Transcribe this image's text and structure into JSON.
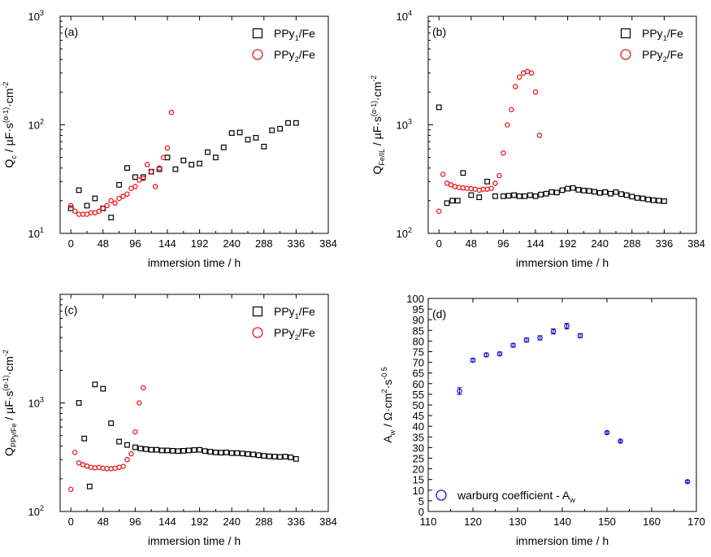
{
  "chart_data": [
    {
      "panel": "(a)",
      "type": "scatter",
      "yscale": "log",
      "xlim": [
        -16,
        384
      ],
      "ylim": [
        10,
        1000
      ],
      "xticks": [
        0,
        48,
        96,
        144,
        192,
        240,
        288,
        336,
        384
      ],
      "yticks": [
        {
          "v": 10,
          "label": "10",
          "sup": "1"
        },
        {
          "v": 100,
          "label": "10",
          "sup": "2"
        },
        {
          "v": 1000,
          "label": "10",
          "sup": "3"
        }
      ],
      "xlabel": "immersion time / h",
      "ylabel": {
        "main": "Q",
        "sub": "c",
        "rest": " / µF·s",
        "sup": "(α-1)",
        "tail": "·cm",
        "sup2": "-2"
      },
      "legend_placement": "top-right",
      "series": [
        {
          "name": {
            "base": "PPy",
            "sub": "1",
            "rest": "/Fe"
          },
          "marker": "square",
          "color": "#000000",
          "x": [
            0,
            12,
            24,
            36,
            48,
            60,
            72,
            84,
            96,
            108,
            120,
            132,
            144,
            156,
            168,
            180,
            192,
            204,
            216,
            228,
            240,
            252,
            264,
            276,
            288,
            300,
            312,
            324,
            336
          ],
          "y": [
            17,
            25,
            18,
            21,
            17,
            14,
            28,
            40,
            33,
            33,
            37,
            39,
            50,
            39,
            47,
            43,
            44,
            56,
            50,
            62,
            84,
            85,
            73,
            76,
            63,
            89,
            92,
            104,
            104
          ]
        },
        {
          "name": {
            "base": "PPy",
            "sub": "2",
            "rest": "/Fe"
          },
          "marker": "circle",
          "color": "#e8191f",
          "x": [
            0,
            6,
            12,
            18,
            24,
            30,
            36,
            42,
            48,
            54,
            60,
            66,
            72,
            78,
            84,
            90,
            96,
            102,
            108,
            114,
            120,
            126,
            132,
            138,
            144,
            150
          ],
          "y": [
            18,
            16,
            15,
            15,
            15,
            15.5,
            15.5,
            16,
            17,
            18,
            20,
            19,
            21,
            22,
            23,
            26,
            27,
            31,
            32,
            43,
            37,
            27,
            40,
            50,
            61,
            130
          ]
        }
      ]
    },
    {
      "panel": "(b)",
      "type": "scatter",
      "yscale": "log",
      "xlim": [
        -16,
        384
      ],
      "ylim": [
        100,
        10000
      ],
      "xticks": [
        0,
        48,
        96,
        144,
        192,
        240,
        288,
        336,
        384
      ],
      "yticks": [
        {
          "v": 100,
          "label": "10",
          "sup": "2"
        },
        {
          "v": 1000,
          "label": "10",
          "sup": "3"
        },
        {
          "v": 10000,
          "label": "10",
          "sup": "4"
        }
      ],
      "xlabel": "immersion time / h",
      "ylabel": {
        "main": "Q",
        "sub": "Fe/IL",
        "rest": " / µF·s",
        "sup": "(α-1)",
        "tail": "·cm",
        "sup2": "-2"
      },
      "legend_placement": "top-right",
      "series": [
        {
          "name": {
            "base": "PPy",
            "sub": "1",
            "rest": "/Fe"
          },
          "marker": "square",
          "color": "#000000",
          "x": [
            0,
            12,
            20,
            28,
            36,
            48,
            60,
            72,
            84,
            96,
            104,
            112,
            120,
            128,
            136,
            144,
            152,
            160,
            168,
            176,
            184,
            192,
            200,
            208,
            216,
            224,
            232,
            240,
            248,
            256,
            264,
            272,
            280,
            288,
            296,
            304,
            312,
            320,
            328,
            336
          ],
          "y": [
            1450,
            190,
            200,
            200,
            360,
            225,
            215,
            300,
            220,
            220,
            222,
            225,
            220,
            220,
            225,
            220,
            228,
            232,
            240,
            238,
            250,
            258,
            262,
            252,
            248,
            246,
            242,
            236,
            240,
            232,
            240,
            230,
            225,
            218,
            212,
            210,
            205,
            202,
            200,
            198
          ]
        },
        {
          "name": {
            "base": "PPy",
            "sub": "2",
            "rest": "/Fe"
          },
          "marker": "circle",
          "color": "#e8191f",
          "x": [
            0,
            6,
            12,
            18,
            24,
            30,
            36,
            42,
            48,
            54,
            60,
            66,
            72,
            78,
            84,
            90,
            96,
            102,
            108,
            114,
            120,
            126,
            132,
            138,
            144,
            150
          ],
          "y": [
            160,
            350,
            290,
            280,
            270,
            265,
            262,
            260,
            258,
            255,
            250,
            255,
            255,
            260,
            290,
            340,
            550,
            1000,
            1380,
            2250,
            2750,
            3000,
            3100,
            3000,
            2000,
            800
          ]
        }
      ]
    },
    {
      "panel": "(c)",
      "type": "scatter",
      "yscale": "log",
      "xlim": [
        -16,
        384
      ],
      "ylim": [
        100,
        10000
      ],
      "xticks": [
        0,
        48,
        96,
        144,
        192,
        240,
        288,
        336,
        384
      ],
      "yticks": [
        {
          "v": 100,
          "label": "10",
          "sup": "2"
        },
        {
          "v": 1000,
          "label": "10",
          "sup": "3"
        }
      ],
      "xlabel": "immersion time / h",
      "ylabel": {
        "main": "Q",
        "sub": "PPy/Fe",
        "rest": " / µF·s",
        "sup": "(α-1)",
        "tail": "·cm",
        "sup2": "-2"
      },
      "legend_placement": "top-right",
      "series": [
        {
          "name": {
            "base": "PPy",
            "sub": "1",
            "rest": "/Fe"
          },
          "marker": "square",
          "color": "#000000",
          "x": [
            12,
            20,
            28,
            36,
            48,
            60,
            72,
            84,
            96,
            104,
            112,
            120,
            128,
            136,
            144,
            152,
            160,
            168,
            176,
            184,
            192,
            200,
            208,
            216,
            224,
            232,
            240,
            248,
            256,
            264,
            272,
            280,
            288,
            296,
            304,
            312,
            320,
            328,
            336
          ],
          "y": [
            1000,
            470,
            170,
            1480,
            1350,
            650,
            440,
            410,
            390,
            380,
            375,
            370,
            370,
            365,
            365,
            362,
            360,
            362,
            365,
            368,
            370,
            360,
            355,
            350,
            348,
            350,
            345,
            345,
            342,
            338,
            335,
            330,
            325,
            322,
            320,
            318,
            320,
            315,
            305
          ]
        },
        {
          "name": {
            "base": "PPy",
            "sub": "2",
            "rest": "/Fe"
          },
          "marker": "circle",
          "color": "#e8191f",
          "x": [
            0,
            6,
            12,
            18,
            24,
            30,
            36,
            42,
            48,
            54,
            60,
            66,
            72,
            78,
            84,
            90,
            96,
            102,
            108
          ],
          "y": [
            160,
            350,
            280,
            270,
            262,
            255,
            252,
            255,
            250,
            248,
            248,
            250,
            255,
            260,
            300,
            340,
            540,
            1000,
            1380
          ]
        }
      ]
    },
    {
      "panel": "(d)",
      "type": "scatter",
      "yscale": "linear",
      "xlim": [
        110,
        170
      ],
      "ylim": [
        0,
        100
      ],
      "xticks": [
        110,
        120,
        130,
        140,
        150,
        160,
        170
      ],
      "yticks": [
        0,
        5,
        10,
        15,
        20,
        25,
        30,
        35,
        40,
        45,
        50,
        55,
        60,
        65,
        70,
        75,
        80,
        85,
        90,
        95,
        100
      ],
      "xlabel": "immersion time / h",
      "ylabel": {
        "main": "A",
        "sub": "w",
        "rest": "  / Ω·cm",
        "sup": "2",
        "tail": "·s",
        "sup2": "-0.5"
      },
      "legend_placement": "bottom-left",
      "series": [
        {
          "name": {
            "base": "warburg coefficient - A",
            "sub": "w",
            "rest": ""
          },
          "marker": "circle",
          "color": "#1515cc",
          "x": [
            117,
            120,
            123,
            126,
            129,
            132,
            135,
            138,
            141,
            144,
            150,
            153,
            168
          ],
          "y": [
            56.5,
            71,
            73.5,
            74,
            78,
            80.5,
            81.5,
            84.5,
            87,
            82.5,
            37,
            33,
            14
          ],
          "err": [
            1.6,
            0.8,
            0.8,
            0.8,
            0.8,
            1.0,
            1.0,
            1.2,
            1.3,
            1.0,
            0.5,
            0.5,
            0.5
          ]
        }
      ]
    }
  ]
}
